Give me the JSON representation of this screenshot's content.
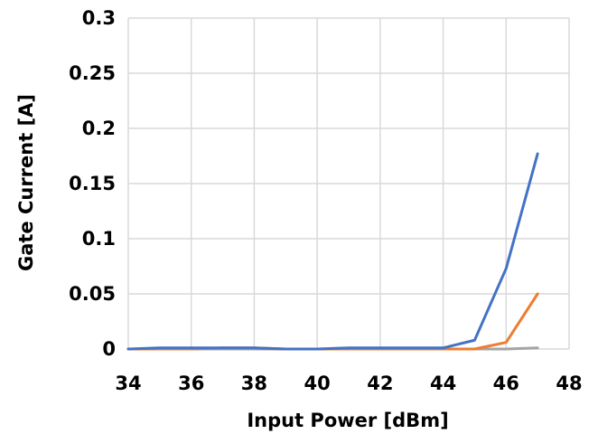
{
  "chart_data": {
    "type": "line",
    "title": "",
    "xlabel": "Input Power [dBm]",
    "ylabel": "Gate Current [A]",
    "xlim": [
      34,
      48
    ],
    "ylim": [
      0,
      0.3
    ],
    "x_ticks": [
      "34",
      "36",
      "38",
      "40",
      "42",
      "44",
      "46",
      "48"
    ],
    "y_ticks": [
      "0",
      "0.05",
      "0.1",
      "0.15",
      "0.2",
      "0.25",
      "0.3"
    ],
    "grid": true,
    "legend": "none",
    "x": [
      34,
      35,
      36,
      37,
      38,
      39,
      40,
      41,
      42,
      43,
      44,
      45,
      46,
      47
    ],
    "series": [
      {
        "color": "#4472c4",
        "values": [
          0,
          0.001,
          0.001,
          0.001,
          0.001,
          0,
          0,
          0.001,
          0.001,
          0.001,
          0.001,
          0.008,
          0.073,
          0.177
        ]
      },
      {
        "color": "#ed7d31",
        "values": [
          0,
          0,
          0,
          0.001,
          0.001,
          0,
          0,
          0,
          0,
          0,
          0,
          0,
          0.006,
          0.05
        ]
      },
      {
        "color": "#a5a5a5",
        "values": [
          0,
          0,
          0,
          0,
          0,
          0,
          0,
          0,
          0,
          0,
          0,
          0,
          0,
          0.001
        ]
      }
    ]
  }
}
